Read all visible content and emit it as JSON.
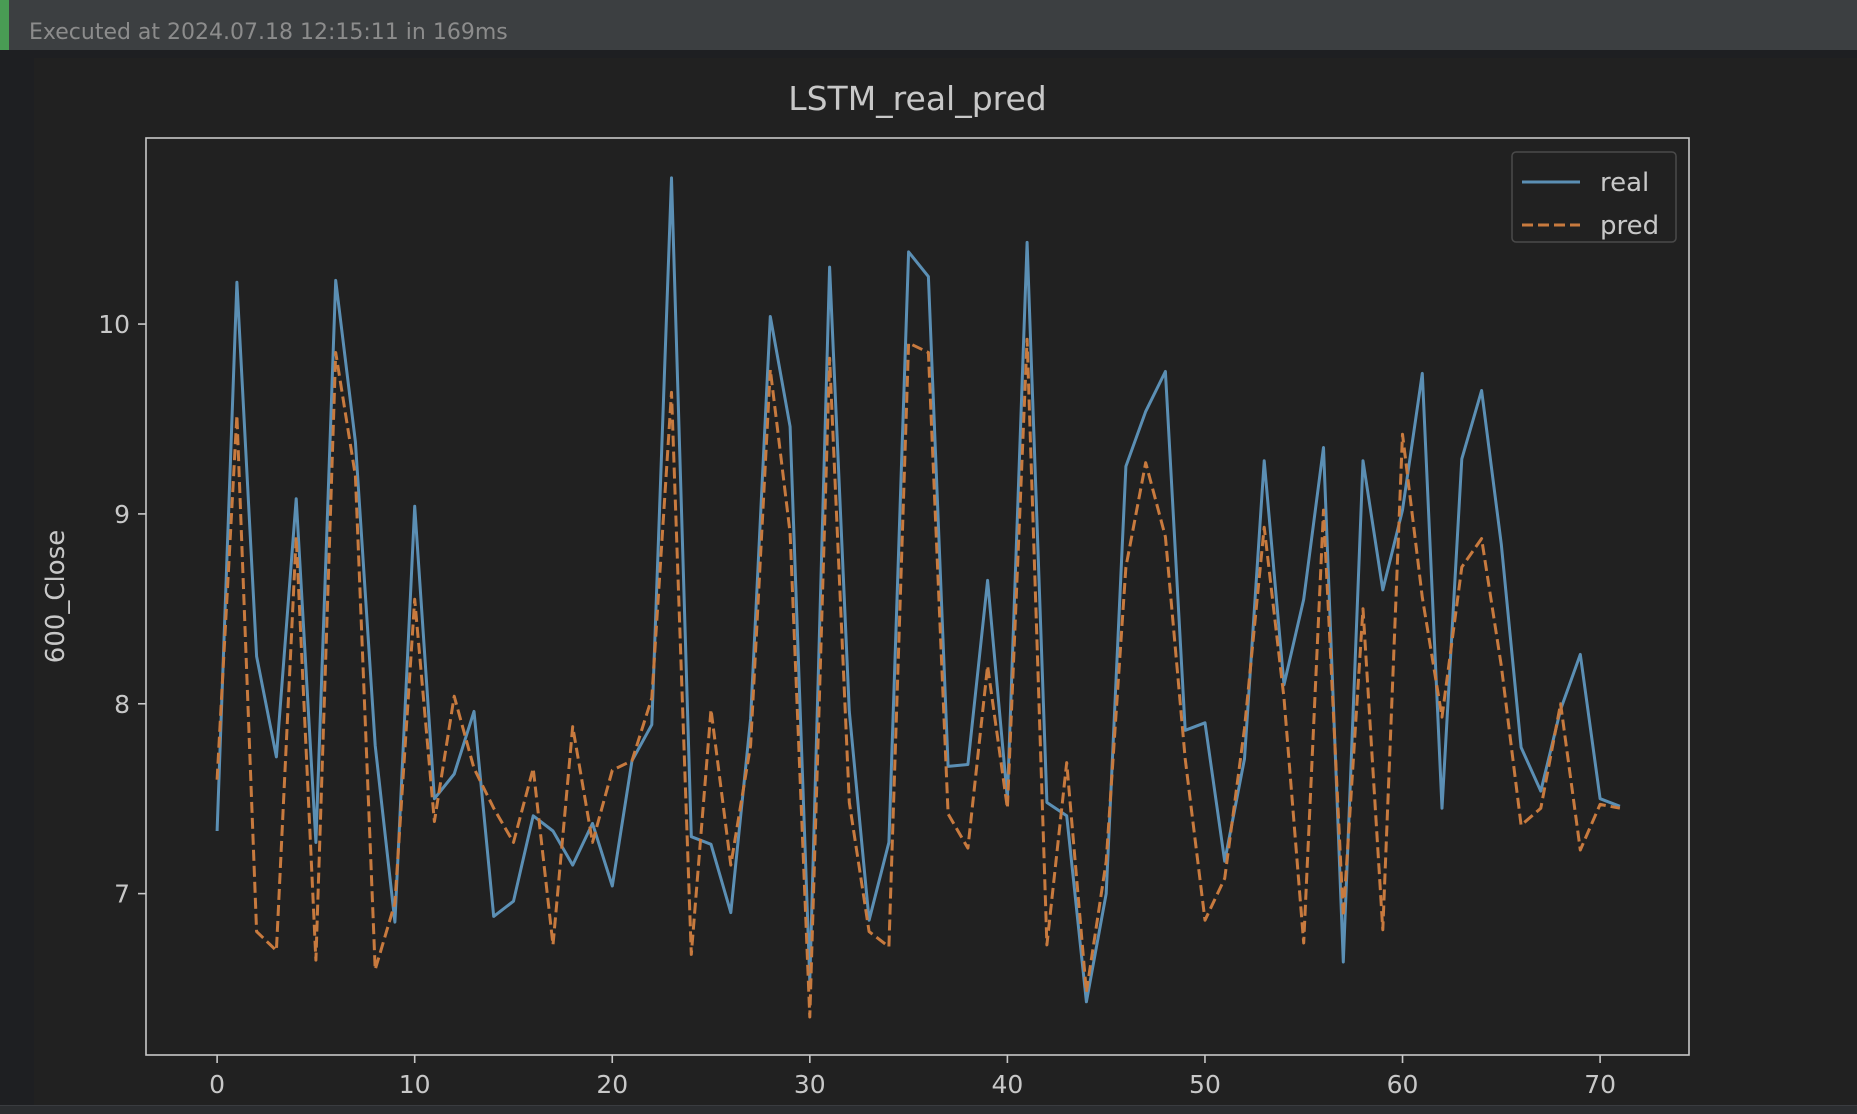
{
  "status": {
    "text": "Executed at 2024.07.18 12:15:11 in 169ms"
  },
  "colors": {
    "real": "#5b8fb4",
    "pred": "#c87a3e",
    "axes": "#c8c8c8",
    "text": "#c8c8c8",
    "background": "#212121"
  },
  "chart_data": {
    "type": "line",
    "title": "LSTM_real_pred",
    "xlabel": "",
    "ylabel": "600_Close",
    "xlim": [
      -3.6,
      74.5
    ],
    "ylim": [
      6.15,
      10.98
    ],
    "x_ticks": [
      0,
      10,
      20,
      30,
      40,
      50,
      60,
      70
    ],
    "y_ticks": [
      7,
      8,
      9,
      10
    ],
    "grid": false,
    "legend": {
      "position": "top-right"
    },
    "series": [
      {
        "name": "real",
        "style": "solid",
        "color": "#5b8fb4",
        "values": [
          7.33,
          10.22,
          8.25,
          7.72,
          9.08,
          7.27,
          10.23,
          9.38,
          7.78,
          6.85,
          9.04,
          7.5,
          7.63,
          7.96,
          6.88,
          6.96,
          7.41,
          7.33,
          7.15,
          7.37,
          7.04,
          7.7,
          7.89,
          10.77,
          7.3,
          7.26,
          6.9,
          7.92,
          10.04,
          9.46,
          6.54,
          10.3,
          7.96,
          6.86,
          7.27,
          10.38,
          10.25,
          7.67,
          7.68,
          8.65,
          7.5,
          10.43,
          7.48,
          7.41,
          6.43,
          7.0,
          9.25,
          9.54,
          9.75,
          7.86,
          7.9,
          7.17,
          7.71,
          9.28,
          8.1,
          8.55,
          9.35,
          6.64,
          9.28,
          8.6,
          9.02,
          9.74,
          7.45,
          9.29,
          9.65,
          8.84,
          7.77,
          7.54,
          7.97,
          8.26,
          7.5,
          7.46
        ]
      },
      {
        "name": "pred",
        "style": "dashed",
        "color": "#c87a3e",
        "values": [
          7.6,
          9.52,
          6.8,
          6.7,
          8.88,
          6.65,
          9.85,
          9.2,
          6.6,
          6.95,
          8.55,
          7.38,
          8.04,
          7.66,
          7.45,
          7.27,
          7.66,
          6.73,
          7.88,
          7.27,
          7.65,
          7.7,
          8.03,
          9.64,
          6.68,
          7.97,
          7.15,
          7.78,
          9.76,
          8.9,
          6.35,
          9.82,
          7.48,
          6.8,
          6.72,
          9.9,
          9.85,
          7.42,
          7.24,
          8.2,
          7.45,
          9.92,
          6.73,
          7.69,
          6.48,
          7.17,
          8.72,
          9.27,
          8.88,
          7.71,
          6.86,
          7.08,
          7.87,
          8.93,
          8.03,
          6.74,
          9.02,
          6.88,
          8.5,
          6.81,
          9.42,
          8.56,
          7.93,
          8.72,
          8.87,
          8.2,
          7.36,
          7.45,
          8.0,
          7.23,
          7.47,
          7.45
        ]
      }
    ]
  }
}
